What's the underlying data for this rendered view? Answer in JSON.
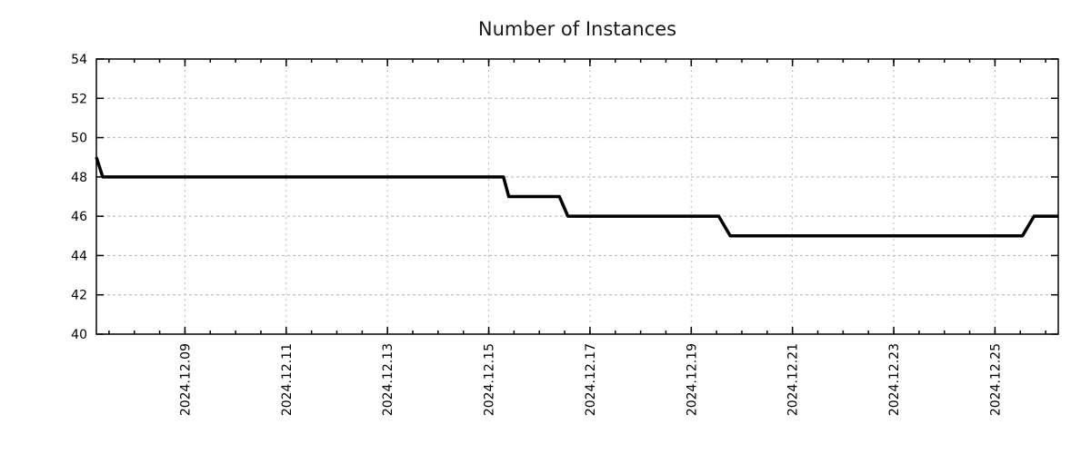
{
  "chart_data": {
    "type": "line",
    "title": "Number of Instances",
    "style": {
      "line_color": "#000000",
      "line_width": 3.5,
      "grid_color": "#b3b3b3",
      "axis_color": "#000000",
      "background": "#ffffff",
      "grid": "on",
      "legend": "none"
    },
    "x_axis": {
      "type": "time",
      "min": "2024-12-07T06:00",
      "max": "2024-12-26T06:00",
      "minor_tick_hours": 12,
      "major_ticks": [
        {
          "label": "2024.12.09",
          "time": "2024-12-09T00:00"
        },
        {
          "label": "2024.12.11",
          "time": "2024-12-11T00:00"
        },
        {
          "label": "2024.12.13",
          "time": "2024-12-13T00:00"
        },
        {
          "label": "2024.12.15",
          "time": "2024-12-15T00:00"
        },
        {
          "label": "2024.12.17",
          "time": "2024-12-17T00:00"
        },
        {
          "label": "2024.12.19",
          "time": "2024-12-19T00:00"
        },
        {
          "label": "2024.12.21",
          "time": "2024-12-21T00:00"
        },
        {
          "label": "2024.12.23",
          "time": "2024-12-23T00:00"
        },
        {
          "label": "2024.12.25",
          "time": "2024-12-25T00:00"
        }
      ]
    },
    "y_axis": {
      "min": 40,
      "max": 54,
      "tick_step": 2,
      "tick_labels": [
        "40",
        "42",
        "44",
        "46",
        "48",
        "50",
        "52",
        "54"
      ]
    },
    "series": [
      {
        "name": "Number of Instances",
        "points": [
          {
            "time": "2024-12-07T06:00",
            "value": 49
          },
          {
            "time": "2024-12-07T09:00",
            "value": 48
          },
          {
            "time": "2024-12-15T07:00",
            "value": 48
          },
          {
            "time": "2024-12-15T09:30",
            "value": 47
          },
          {
            "time": "2024-12-16T09:30",
            "value": 47
          },
          {
            "time": "2024-12-16T13:30",
            "value": 46
          },
          {
            "time": "2024-12-19T13:00",
            "value": 46
          },
          {
            "time": "2024-12-19T18:30",
            "value": 45
          },
          {
            "time": "2024-12-25T13:00",
            "value": 45
          },
          {
            "time": "2024-12-25T18:30",
            "value": 46
          },
          {
            "time": "2024-12-26T06:00",
            "value": 46
          }
        ]
      }
    ]
  }
}
